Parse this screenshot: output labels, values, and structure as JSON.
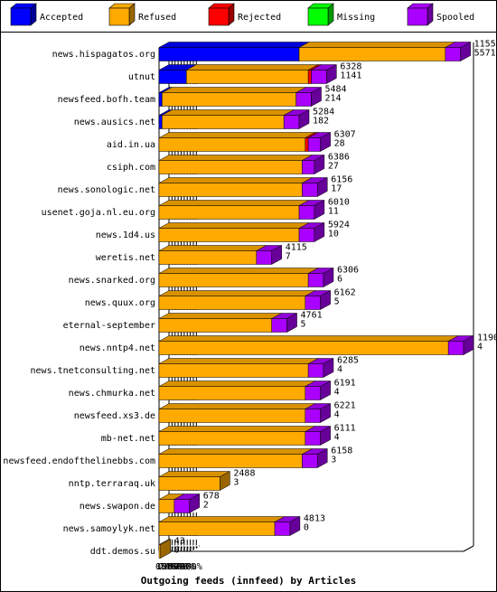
{
  "chart_data": {
    "type": "bar",
    "orientation": "horizontal",
    "stacked": true,
    "style": "3d",
    "xlabel": "Outgoing feeds (innfeed) by Articles",
    "xticks": [
      "0%",
      "10%",
      "20%",
      "30%",
      "40%",
      "50%",
      "60%",
      "70%",
      "80%",
      "90%",
      "100%"
    ],
    "xlim": [
      0,
      100
    ],
    "legend_position": "top",
    "series": [
      {
        "name": "Accepted",
        "color": "#0000ff"
      },
      {
        "name": "Refused",
        "color": "#ffaa00"
      },
      {
        "name": "Rejected",
        "color": "#ff0000"
      },
      {
        "name": "Missing",
        "color": "#00ff00"
      },
      {
        "name": "Spooled",
        "color": "#aa00ff"
      }
    ],
    "categories": [
      {
        "label": "news.hispagatos.org",
        "v1": "11556",
        "v2": "5571",
        "pct": [
          46,
          48,
          0,
          0,
          5
        ]
      },
      {
        "label": "utnut",
        "v1": "6328",
        "v2": "1141",
        "pct": [
          9,
          40,
          1,
          0,
          5
        ]
      },
      {
        "label": "newsfeed.bofh.team",
        "v1": "5484",
        "v2": "214",
        "pct": [
          1,
          44,
          0,
          0,
          5
        ]
      },
      {
        "label": "news.ausics.net",
        "v1": "5284",
        "v2": "182",
        "pct": [
          1,
          40,
          0,
          0,
          5
        ]
      },
      {
        "label": "aid.in.ua",
        "v1": "6307",
        "v2": "28",
        "pct": [
          0,
          48,
          1,
          0,
          4
        ]
      },
      {
        "label": "csiph.com",
        "v1": "6386",
        "v2": "27",
        "pct": [
          0,
          47,
          0,
          0,
          4
        ]
      },
      {
        "label": "news.sonologic.net",
        "v1": "6156",
        "v2": "17",
        "pct": [
          0,
          47,
          0,
          0,
          5
        ]
      },
      {
        "label": "usenet.goja.nl.eu.org",
        "v1": "6010",
        "v2": "11",
        "pct": [
          0,
          46,
          0,
          0,
          5
        ]
      },
      {
        "label": "news.1d4.us",
        "v1": "5924",
        "v2": "10",
        "pct": [
          0,
          46,
          0,
          0,
          5
        ]
      },
      {
        "label": "weretis.net",
        "v1": "4115",
        "v2": "7",
        "pct": [
          0,
          32,
          0,
          0,
          5
        ]
      },
      {
        "label": "news.snarked.org",
        "v1": "6306",
        "v2": "6",
        "pct": [
          0,
          49,
          0,
          0,
          5
        ]
      },
      {
        "label": "news.quux.org",
        "v1": "6162",
        "v2": "5",
        "pct": [
          0,
          48,
          0,
          0,
          5
        ]
      },
      {
        "label": "eternal-september",
        "v1": "4761",
        "v2": "5",
        "pct": [
          0,
          37,
          0,
          0,
          5
        ]
      },
      {
        "label": "news.nntp4.net",
        "v1": "11901",
        "v2": "4",
        "pct": [
          0,
          95,
          0,
          0,
          5
        ]
      },
      {
        "label": "news.tnetconsulting.net",
        "v1": "6285",
        "v2": "4",
        "pct": [
          0,
          49,
          0,
          0,
          5
        ]
      },
      {
        "label": "news.chmurka.net",
        "v1": "6191",
        "v2": "4",
        "pct": [
          0,
          48,
          0,
          0,
          5
        ]
      },
      {
        "label": "newsfeed.xs3.de",
        "v1": "6221",
        "v2": "4",
        "pct": [
          0,
          48,
          0,
          0,
          5
        ]
      },
      {
        "label": "mb-net.net",
        "v1": "6111",
        "v2": "4",
        "pct": [
          0,
          48,
          0,
          0,
          5
        ]
      },
      {
        "label": "newsfeed.endofthelinebbs.com",
        "v1": "6158",
        "v2": "3",
        "pct": [
          0,
          47,
          0,
          0,
          5
        ]
      },
      {
        "label": "nntp.terraraq.uk",
        "v1": "2488",
        "v2": "3",
        "pct": [
          0,
          20,
          0,
          0,
          0
        ]
      },
      {
        "label": "news.swapon.de",
        "v1": "678",
        "v2": "2",
        "pct": [
          0,
          5,
          0,
          0,
          5
        ]
      },
      {
        "label": "news.samoylyk.net",
        "v1": "4813",
        "v2": "0",
        "pct": [
          0,
          38,
          0,
          0,
          5
        ]
      },
      {
        "label": "ddt.demos.su",
        "v1": "43",
        "v2": "0",
        "pct": [
          0,
          0.5,
          0,
          0,
          0
        ]
      }
    ]
  }
}
